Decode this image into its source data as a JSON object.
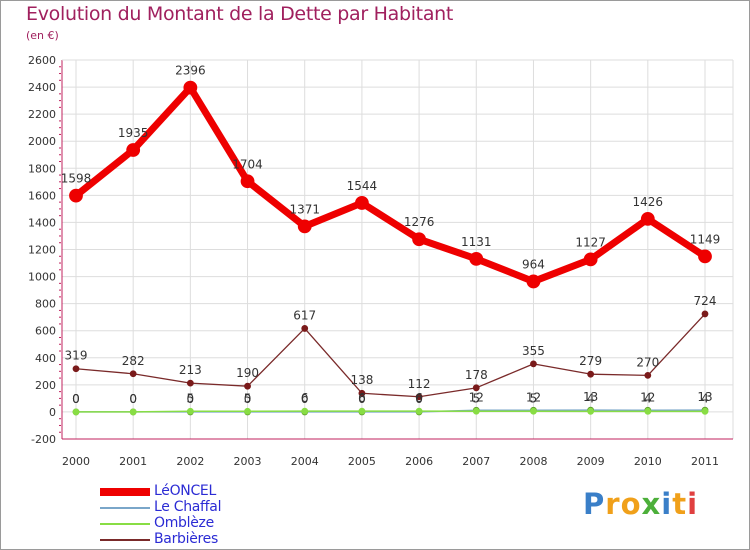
{
  "title": "Evolution du Montant de la Dette par Habitant",
  "subtitle": "(en €)",
  "logo": {
    "letters": [
      {
        "ch": "P",
        "color": "#3a7fc8"
      },
      {
        "ch": "r",
        "color": "#f0a01a"
      },
      {
        "ch": "o",
        "color": "#f0a01a"
      },
      {
        "ch": "x",
        "color": "#4caf3a"
      },
      {
        "ch": "i",
        "color": "#3a7fc8"
      },
      {
        "ch": "t",
        "color": "#f0a01a"
      },
      {
        "ch": "i",
        "color": "#e04040"
      }
    ]
  },
  "chart_data": {
    "type": "line",
    "title": "Evolution du Montant de la Dette par Habitant",
    "subtitle": "(en €)",
    "x": [
      "2000",
      "2001",
      "2002",
      "2003",
      "2004",
      "2005",
      "2006",
      "2007",
      "2008",
      "2009",
      "2010",
      "2011"
    ],
    "ylim": [
      -200,
      2600
    ],
    "yticks": [
      -200,
      0,
      200,
      400,
      600,
      800,
      1000,
      1200,
      1400,
      1600,
      1800,
      2000,
      2200,
      2400,
      2600
    ],
    "grid": true,
    "legend_position": "bottom-left",
    "series": [
      {
        "name": "LéONCEL",
        "color": "#ee0000",
        "values": [
          1598,
          1935,
          2396,
          1704,
          1371,
          1544,
          1276,
          1131,
          964,
          1127,
          1426,
          1149
        ],
        "labels": [
          "1598",
          "1935",
          "2396",
          "1704",
          "1371",
          "1544",
          "1276",
          "1131",
          "964",
          "1127",
          "1426",
          "1149"
        ]
      },
      {
        "name": "Le Chaffal",
        "color": "#7aa6c9",
        "values": [
          0,
          0,
          0,
          0,
          0,
          0,
          0,
          12,
          12,
          13,
          12,
          13
        ],
        "labels": [
          "0",
          "0",
          "0",
          "0",
          "0",
          "0",
          "0",
          "12",
          "12",
          "13",
          "12",
          "13"
        ]
      },
      {
        "name": "Omblèze",
        "color": "#88dd44",
        "values": [
          0,
          0,
          5,
          5,
          6,
          6,
          6,
          5,
          5,
          4,
          4,
          4
        ],
        "labels": [
          "0",
          "0",
          "5",
          "5",
          "6",
          "6",
          "6",
          "5",
          "5",
          "4",
          "4",
          "4"
        ]
      },
      {
        "name": "Barbières",
        "color": "#7a2a2a",
        "values": [
          319,
          282,
          213,
          190,
          617,
          138,
          112,
          178,
          355,
          279,
          270,
          724
        ],
        "labels": [
          "319",
          "282",
          "213",
          "190",
          "617",
          "138",
          "112",
          "178",
          "355",
          "279",
          "270",
          "724"
        ]
      }
    ]
  }
}
